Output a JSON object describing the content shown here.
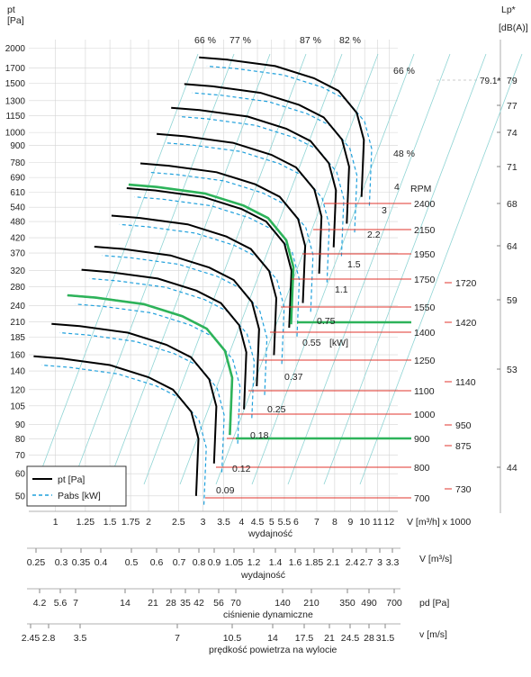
{
  "chart_data": {
    "type": "line",
    "left_axis": {
      "label_top": "pt",
      "label_unit": "[Pa]",
      "ticks": [
        2000,
        1700,
        1500,
        1300,
        1150,
        1000,
        900,
        780,
        690,
        610,
        540,
        480,
        420,
        370,
        320,
        280,
        240,
        210,
        185,
        160,
        140,
        120,
        105,
        90,
        80,
        70,
        60,
        50
      ],
      "scale": "log"
    },
    "right_axis": {
      "label_top": "Lp*",
      "label_unit": "[dB(A)]",
      "ticks": [
        79,
        77,
        74,
        71,
        68,
        64,
        59,
        53,
        44
      ],
      "marker": "79.1*"
    },
    "x_axis": {
      "label": "V [m³/h] x 1000",
      "caption": "wydajność",
      "ticks": [
        "1",
        "1.25",
        "1.5",
        "1.75",
        "2",
        "2.5",
        "3",
        "3.5",
        "4",
        "4.5",
        "5",
        "5.5",
        "6",
        "7",
        "8",
        "9",
        "10",
        "11",
        "12"
      ],
      "scale": "log"
    },
    "efficiency_labels": [
      "66 %",
      "77 %",
      "87 %",
      "82 %",
      "66 %",
      "48 %"
    ],
    "rpm_header": "RPM",
    "rpm_values": [
      2400,
      2150,
      1950,
      1750,
      1550,
      1400,
      1250,
      1100,
      1000,
      900,
      800,
      700
    ],
    "rpm_highlight_values": [
      1720,
      1420,
      1140,
      950,
      875,
      730
    ],
    "power_labels": [
      "4",
      "3",
      "2.2",
      "1.5",
      "1.1",
      "0.75",
      "0.55",
      "[kW]",
      "0.37",
      "0.25",
      "0.18",
      "0.12",
      "0.09"
    ],
    "highlighted_series": [
      "1420",
      "900"
    ],
    "legend": [
      {
        "name": "pt [Pa]",
        "style": "solid",
        "color": "#000000"
      },
      {
        "name": "Pabs [kW]",
        "style": "dashed",
        "color": "#1fa0dc"
      }
    ],
    "bottom_scales": [
      {
        "unit": "V  [m³/s]",
        "caption": "wydajność",
        "ticks": [
          "0.25",
          "0.3",
          "0.35",
          "0.4",
          "0.5",
          "0.6",
          "0.7",
          "0.8",
          "0.9",
          "1.05",
          "1.2",
          "1.4",
          "1.6",
          "1.85",
          "2.1",
          "2.4",
          "2.7",
          "3",
          "3.3"
        ]
      },
      {
        "unit": "pd  [Pa]",
        "caption": "ciśnienie dynamiczne",
        "ticks": [
          "4.2",
          "5.6",
          "7",
          "14",
          "21",
          "28",
          "35",
          "42",
          "56",
          "70",
          "140",
          "210",
          "350",
          "490",
          "700"
        ]
      },
      {
        "unit": "v  [m/s]",
        "caption": "prędkość powietrza na wylocie",
        "ticks": [
          "2.45",
          "2.8",
          "3.5",
          "7",
          "10.5",
          "14",
          "17.5",
          "21",
          "24.5",
          "28",
          "31.5"
        ]
      }
    ],
    "grid": true,
    "legend_position": "bottom-left"
  },
  "colors": {
    "pressure": "#000000",
    "power": "#1fa0dc",
    "highlight": "#2db35a",
    "rpm_line": "#e0362c",
    "grid": "#d4d4d4",
    "diag": "#8fd4d4"
  }
}
